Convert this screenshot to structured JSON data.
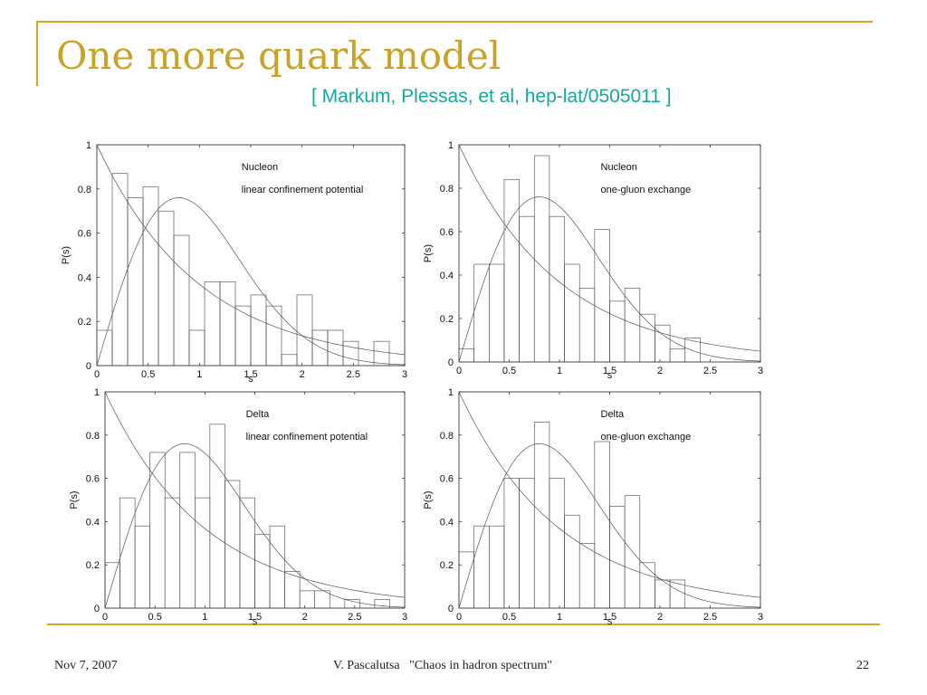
{
  "slide": {
    "title": "One more quark model",
    "subtitle": "[ Markum, Plessas, et al, hep-lat/0505011 ]",
    "footer_date": "Nov 7, 2007",
    "footer_center": "V. Pascalutsa   \"Chaos in hadron spectrum\"",
    "page_number": "22",
    "accent_color": "#d9a521",
    "title_color": "#c9a227",
    "subtitle_color": "#14a89c"
  },
  "chart_data": [
    {
      "type": "bar",
      "annotation_lines": [
        "Nucleon",
        "linear confinement potential"
      ],
      "xlabel": "s",
      "ylabel": "P(s)",
      "xlim": [
        0,
        3
      ],
      "ylim": [
        0,
        1
      ],
      "xticks": [
        "0",
        "0.5",
        "1",
        "1.5",
        "2",
        "2.5",
        "3"
      ],
      "yticks": [
        "0",
        "0.2",
        "0.4",
        "0.6",
        "0.8",
        "1"
      ],
      "bin_width": 0.15,
      "bins_start": [
        0,
        0.15,
        0.3,
        0.45,
        0.6,
        0.75,
        0.9,
        1.05,
        1.2,
        1.35,
        1.5,
        1.65,
        1.8,
        1.95,
        2.1,
        2.25,
        2.4,
        2.55,
        2.7
      ],
      "values": [
        0.16,
        0.87,
        0.76,
        0.81,
        0.7,
        0.59,
        0.16,
        0.38,
        0.38,
        0.27,
        0.32,
        0.27,
        0.05,
        0.32,
        0.16,
        0.16,
        0.11,
        0.0,
        0.11
      ],
      "curves": [
        "Poisson: exp(-s)",
        "Wigner: (pi/2) s exp(-pi s^2/4)"
      ]
    },
    {
      "type": "bar",
      "annotation_lines": [
        "Nucleon",
        "one-gluon exchange"
      ],
      "xlabel": "s",
      "ylabel": "P(s)",
      "xlim": [
        0,
        3
      ],
      "ylim": [
        0,
        1
      ],
      "xticks": [
        "0",
        "0.5",
        "1",
        "1.5",
        "2",
        "2.5",
        "3"
      ],
      "yticks": [
        "0",
        "0.2",
        "0.4",
        "0.6",
        "0.8",
        "1"
      ],
      "bin_width": 0.15,
      "bins_start": [
        0,
        0.15,
        0.3,
        0.45,
        0.6,
        0.75,
        0.9,
        1.05,
        1.2,
        1.35,
        1.5,
        1.65,
        1.8,
        1.95,
        2.1,
        2.25
      ],
      "values": [
        0.06,
        0.45,
        0.45,
        0.84,
        0.67,
        0.95,
        0.67,
        0.45,
        0.34,
        0.61,
        0.28,
        0.34,
        0.22,
        0.17,
        0.06,
        0.11
      ],
      "curves": [
        "Poisson: exp(-s)",
        "Wigner: (pi/2) s exp(-pi s^2/4)"
      ]
    },
    {
      "type": "bar",
      "annotation_lines": [
        "Delta",
        "linear confinement potential"
      ],
      "xlabel": "s",
      "ylabel": "P(s)",
      "xlim": [
        0,
        3
      ],
      "ylim": [
        0,
        1
      ],
      "xticks": [
        "0",
        "0.5",
        "1",
        "1.5",
        "2",
        "2.5",
        "3"
      ],
      "yticks": [
        "0",
        "0.2",
        "0.4",
        "0.6",
        "0.8",
        "1"
      ],
      "bin_width": 0.15,
      "bins_start": [
        0,
        0.15,
        0.3,
        0.45,
        0.6,
        0.75,
        0.9,
        1.05,
        1.2,
        1.35,
        1.5,
        1.65,
        1.8,
        1.95,
        2.1,
        2.25,
        2.4,
        2.55,
        2.7
      ],
      "values": [
        0.21,
        0.51,
        0.38,
        0.72,
        0.51,
        0.72,
        0.51,
        0.85,
        0.59,
        0.51,
        0.34,
        0.38,
        0.17,
        0.08,
        0.08,
        0.0,
        0.04,
        0.0,
        0.04
      ],
      "curves": [
        "Poisson: exp(-s)",
        "Wigner: (pi/2) s exp(-pi s^2/4)"
      ]
    },
    {
      "type": "bar",
      "annotation_lines": [
        "Delta",
        "one-gluon exchange"
      ],
      "xlabel": "s",
      "ylabel": "P(s)",
      "xlim": [
        0,
        3
      ],
      "ylim": [
        0,
        1
      ],
      "xticks": [
        "0",
        "0.5",
        "1",
        "1.5",
        "2",
        "2.5",
        "3"
      ],
      "yticks": [
        "0",
        "0.2",
        "0.4",
        "0.6",
        "0.8",
        "1"
      ],
      "bin_width": 0.15,
      "bins_start": [
        0,
        0.15,
        0.3,
        0.45,
        0.6,
        0.75,
        0.9,
        1.05,
        1.2,
        1.35,
        1.5,
        1.65,
        1.8,
        1.95,
        2.1
      ],
      "values": [
        0.26,
        0.38,
        0.38,
        0.6,
        0.6,
        0.86,
        0.6,
        0.43,
        0.3,
        0.77,
        0.47,
        0.52,
        0.21,
        0.13,
        0.13
      ],
      "curves": [
        "Poisson: exp(-s)",
        "Wigner: (pi/2) s exp(-pi s^2/4)"
      ]
    }
  ]
}
